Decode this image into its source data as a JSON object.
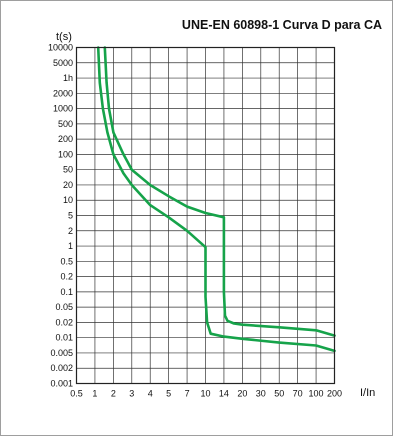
{
  "chart_data": {
    "type": "line",
    "title": "UNE-EN 60898-1 Curva D para CA",
    "ylabel": "t(s)",
    "xlabel": "I/In",
    "x_scale": "log",
    "y_scale": "log",
    "xlim": [
      0.5,
      200
    ],
    "ylim": [
      0.001,
      10000
    ],
    "grid": true,
    "x_ticks": [
      0.5,
      1,
      2,
      3,
      4,
      5,
      7,
      10,
      14,
      20,
      30,
      50,
      70,
      100,
      200
    ],
    "x_tick_labels": [
      "0.5",
      "1",
      "2",
      "3",
      "4",
      "5",
      "7",
      "10",
      "14",
      "20",
      "30",
      "50",
      "70",
      "100",
      "200"
    ],
    "y_ticks": [
      10000,
      5000,
      3600,
      2000,
      1000,
      500,
      200,
      100,
      50,
      20,
      10,
      5,
      2,
      1,
      0.5,
      0.2,
      0.1,
      0.05,
      0.02,
      0.01,
      0.005,
      0.002,
      0.001
    ],
    "y_tick_labels": [
      "10000",
      "5000",
      "1h",
      "2000",
      "1000",
      "500",
      "200",
      "100",
      "50",
      "20",
      "10",
      "5",
      "2",
      "1",
      "0.5",
      "0.2",
      "0.1",
      "0.05",
      "0.02",
      "0.01",
      "0.005",
      "0.002",
      "0.001"
    ],
    "line_color": "#16a34a",
    "series": [
      {
        "x": [
          1.13,
          1.2,
          1.35,
          1.6,
          2,
          2.5,
          3,
          4,
          5,
          7,
          10,
          10,
          10.3,
          11,
          14,
          20,
          50,
          100,
          200
        ],
        "y": [
          10000,
          3000,
          1000,
          300,
          100,
          40,
          20,
          8,
          4.5,
          2,
          0.95,
          0.08,
          0.02,
          0.012,
          0.0105,
          0.0095,
          0.008,
          0.007,
          0.0055
        ]
      },
      {
        "x": [
          1.45,
          1.55,
          1.7,
          2,
          2.5,
          3,
          4,
          5,
          7,
          10,
          14,
          14,
          14.3,
          15,
          17,
          20,
          50,
          100,
          200
        ],
        "y": [
          10000,
          3000,
          1000,
          300,
          100,
          50,
          20,
          12,
          7.5,
          5.6,
          4.5,
          0.1,
          0.03,
          0.022,
          0.019,
          0.018,
          0.016,
          0.014,
          0.011
        ]
      }
    ]
  }
}
